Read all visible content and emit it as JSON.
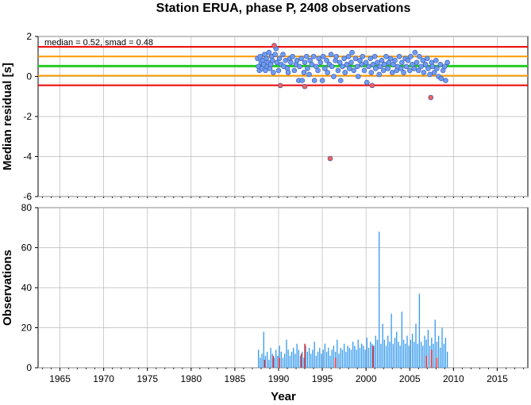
{
  "chart_data": [
    {
      "type": "scatter",
      "title": "Station ERUA, phase P, 2408 observations",
      "annotation": "median = 0.52, smad = 0.48",
      "xlabel": "",
      "ylabel": "Median residual [s]",
      "xlim": [
        1962.5,
        2018.5
      ],
      "ylim": [
        -6,
        2
      ],
      "y_ticks": [
        "2",
        "0",
        "-2",
        "-4",
        "-6"
      ],
      "grid": true,
      "reference_lines": [
        {
          "name": "median",
          "value": 0.52,
          "color": "#22cc22"
        },
        {
          "name": "median + smad",
          "value": 1.0,
          "color": "#ff9900"
        },
        {
          "name": "median - smad",
          "value": 0.04,
          "color": "#ff9900"
        },
        {
          "name": "median + 2 smad",
          "value": 1.48,
          "color": "#ee0000"
        },
        {
          "name": "median - 2 smad",
          "value": -0.44,
          "color": "#ee0000"
        }
      ],
      "series": [
        {
          "color": "#6f9cf2",
          "points": [
            [
              1987.6,
              0.9
            ],
            [
              1987.7,
              0.5
            ],
            [
              1987.8,
              0.3
            ],
            [
              1987.9,
              1.0
            ],
            [
              1988.0,
              0.7
            ],
            [
              1988.1,
              0.4
            ],
            [
              1988.2,
              0.8
            ],
            [
              1988.3,
              0.6
            ],
            [
              1988.4,
              1.1
            ],
            [
              1988.5,
              0.3
            ],
            [
              1988.6,
              0.9
            ],
            [
              1988.7,
              0.5
            ],
            [
              1988.8,
              0.7
            ],
            [
              1988.9,
              1.2
            ],
            [
              1989.0,
              0.4
            ],
            [
              1989.1,
              0.6
            ],
            [
              1989.2,
              1.0
            ],
            [
              1989.3,
              0.8
            ],
            [
              1989.4,
              0.2
            ],
            [
              1989.6,
              1.1
            ],
            [
              1989.7,
              1.4
            ],
            [
              1989.8,
              0.7
            ],
            [
              1990.0,
              0.3
            ],
            [
              1990.1,
              0.9
            ],
            [
              1990.3,
              0.6
            ],
            [
              1990.5,
              1.1
            ],
            [
              1990.6,
              0.5
            ],
            [
              1990.8,
              0.8
            ],
            [
              1991.0,
              0.4
            ],
            [
              1991.1,
              0.2
            ],
            [
              1991.3,
              0.9
            ],
            [
              1991.4,
              0.7
            ],
            [
              1991.6,
              1.0
            ],
            [
              1991.8,
              0.3
            ],
            [
              1992.0,
              0.6
            ],
            [
              1992.1,
              0.8
            ],
            [
              1992.3,
              -0.2
            ],
            [
              1992.4,
              0.5
            ],
            [
              1992.6,
              0.9
            ],
            [
              1992.7,
              -0.2
            ],
            [
              1992.9,
              0.2
            ],
            [
              1993.0,
              0.7
            ],
            [
              1993.2,
              1.0
            ],
            [
              1993.3,
              0.4
            ],
            [
              1993.5,
              0.1
            ],
            [
              1993.6,
              0.8
            ],
            [
              1993.8,
              0.6
            ],
            [
              1994.0,
              1.0
            ],
            [
              1994.1,
              -0.2
            ],
            [
              1994.3,
              0.5
            ],
            [
              1994.5,
              0.3
            ],
            [
              1994.6,
              0.9
            ],
            [
              1994.8,
              0.7
            ],
            [
              1995.0,
              -0.2
            ],
            [
              1995.1,
              1.0
            ],
            [
              1995.3,
              0.4
            ],
            [
              1995.5,
              0.8
            ],
            [
              1995.6,
              0.2
            ],
            [
              1995.8,
              0.6
            ],
            [
              1996.0,
              1.1
            ],
            [
              1996.1,
              0.5
            ],
            [
              1996.3,
              0.0
            ],
            [
              1996.5,
              0.8
            ],
            [
              1996.6,
              1.0
            ],
            [
              1996.8,
              0.3
            ],
            [
              1997.0,
              0.7
            ],
            [
              1997.1,
              -0.2
            ],
            [
              1997.3,
              0.5
            ],
            [
              1997.5,
              0.9
            ],
            [
              1997.6,
              0.2
            ],
            [
              1997.8,
              0.6
            ],
            [
              1998.0,
              1.0
            ],
            [
              1998.1,
              0.4
            ],
            [
              1998.3,
              0.7
            ],
            [
              1998.4,
              1.2
            ],
            [
              1998.6,
              0.3
            ],
            [
              1998.8,
              0.9
            ],
            [
              1999.0,
              0.5
            ],
            [
              1999.1,
              0.0
            ],
            [
              1999.3,
              0.8
            ],
            [
              1999.5,
              0.6
            ],
            [
              1999.6,
              1.0
            ],
            [
              1999.8,
              0.3
            ],
            [
              2000.0,
              0.7
            ],
            [
              2000.1,
              -0.3
            ],
            [
              2000.3,
              0.5
            ],
            [
              2000.5,
              0.9
            ],
            [
              2000.6,
              0.2
            ],
            [
              2000.8,
              0.6
            ],
            [
              2001.0,
              1.0
            ],
            [
              2001.1,
              0.4
            ],
            [
              2001.3,
              0.7
            ],
            [
              2001.5,
              0.1
            ],
            [
              2001.6,
              0.5
            ],
            [
              2001.8,
              0.8
            ],
            [
              2002.0,
              0.3
            ],
            [
              2002.1,
              0.6
            ],
            [
              2002.3,
              1.0
            ],
            [
              2002.5,
              0.4
            ],
            [
              2002.6,
              0.7
            ],
            [
              2002.8,
              0.9
            ],
            [
              2003.0,
              0.2
            ],
            [
              2003.1,
              0.6
            ],
            [
              2003.3,
              0.8
            ],
            [
              2003.5,
              0.3
            ],
            [
              2003.6,
              0.5
            ],
            [
              2003.8,
              1.0
            ],
            [
              2004.0,
              0.4
            ],
            [
              2004.1,
              0.7
            ],
            [
              2004.3,
              0.2
            ],
            [
              2004.5,
              0.9
            ],
            [
              2004.6,
              0.5
            ],
            [
              2004.8,
              0.8
            ],
            [
              2005.0,
              0.3
            ],
            [
              2005.1,
              1.0
            ],
            [
              2005.3,
              0.6
            ],
            [
              2005.5,
              0.4
            ],
            [
              2005.6,
              1.2
            ],
            [
              2005.8,
              0.7
            ],
            [
              2006.0,
              0.3
            ],
            [
              2006.1,
              1.0
            ],
            [
              2006.3,
              0.5
            ],
            [
              2006.5,
              0.8
            ],
            [
              2006.6,
              0.2
            ],
            [
              2006.8,
              0.6
            ],
            [
              2007.0,
              0.9
            ],
            [
              2007.1,
              0.4
            ],
            [
              2007.3,
              0.1
            ],
            [
              2007.5,
              0.7
            ],
            [
              2007.6,
              0.5
            ],
            [
              2007.8,
              0.2
            ],
            [
              2008.0,
              0.8
            ],
            [
              2008.1,
              0.4
            ],
            [
              2008.3,
              0.0
            ],
            [
              2008.5,
              0.6
            ],
            [
              2008.6,
              -0.1
            ],
            [
              2008.8,
              0.3
            ],
            [
              2009.0,
              0.5
            ],
            [
              2009.1,
              -0.2
            ],
            [
              2009.3,
              0.7
            ]
          ]
        },
        {
          "color": "#f06060",
          "points": [
            [
              1989.5,
              1.55
            ],
            [
              1990.2,
              -0.45
            ],
            [
              1993.0,
              -0.5
            ],
            [
              1995.9,
              -4.1
            ],
            [
              2000.7,
              -0.45
            ],
            [
              2007.4,
              -1.05
            ]
          ]
        }
      ]
    },
    {
      "type": "bar",
      "title": "",
      "xlabel": "Year",
      "ylabel": "Observations",
      "xlim": [
        1962.5,
        2018.5
      ],
      "ylim": [
        0,
        80
      ],
      "y_ticks": [
        "80",
        "60",
        "40",
        "20",
        "0"
      ],
      "x_ticks": [
        "1965",
        "1970",
        "1975",
        "1980",
        "1985",
        "1990",
        "1995",
        "2000",
        "2005",
        "2010",
        "2015"
      ],
      "grid": true,
      "series": [
        {
          "color": "#3399ee",
          "x": [
            1987.7,
            1987.9,
            1988.1,
            1988.3,
            1988.5,
            1988.7,
            1988.9,
            1989.1,
            1989.3,
            1989.5,
            1989.7,
            1989.9,
            1990.1,
            1990.3,
            1990.5,
            1990.7,
            1990.9,
            1991.1,
            1991.3,
            1991.5,
            1991.7,
            1991.9,
            1992.1,
            1992.3,
            1992.5,
            1992.7,
            1992.9,
            1993.1,
            1993.3,
            1993.5,
            1993.7,
            1993.9,
            1994.1,
            1994.3,
            1994.5,
            1994.7,
            1994.9,
            1995.1,
            1995.3,
            1995.5,
            1995.7,
            1995.9,
            1996.1,
            1996.3,
            1996.5,
            1996.7,
            1996.9,
            1997.1,
            1997.3,
            1997.5,
            1997.7,
            1997.9,
            1998.1,
            1998.3,
            1998.5,
            1998.7,
            1998.9,
            1999.1,
            1999.3,
            1999.5,
            1999.7,
            1999.9,
            2000.1,
            2000.3,
            2000.5,
            2000.7,
            2000.9,
            2001.1,
            2001.3,
            2001.5,
            2001.7,
            2001.9,
            2002.1,
            2002.3,
            2002.5,
            2002.7,
            2002.9,
            2003.1,
            2003.3,
            2003.5,
            2003.7,
            2003.9,
            2004.1,
            2004.3,
            2004.5,
            2004.7,
            2004.9,
            2005.1,
            2005.3,
            2005.5,
            2005.7,
            2005.9,
            2006.1,
            2006.3,
            2006.5,
            2006.7,
            2006.9,
            2007.1,
            2007.3,
            2007.5,
            2007.7,
            2007.9,
            2008.1,
            2008.3,
            2008.5,
            2008.7,
            2008.9,
            2009.1,
            2009.3
          ],
          "values": [
            9,
            5,
            7,
            18,
            6,
            8,
            4,
            10,
            7,
            5,
            9,
            6,
            11,
            8,
            5,
            7,
            14,
            9,
            6,
            8,
            10,
            7,
            12,
            9,
            6,
            8,
            5,
            11,
            8,
            10,
            7,
            9,
            13,
            6,
            8,
            10,
            7,
            9,
            12,
            8,
            10,
            6,
            9,
            11,
            8,
            14,
            7,
            10,
            9,
            12,
            8,
            11,
            10,
            9,
            13,
            11,
            9,
            14,
            10,
            12,
            11,
            9,
            15,
            10,
            13,
            12,
            11,
            16,
            14,
            68,
            12,
            22,
            14,
            11,
            16,
            13,
            27,
            12,
            15,
            18,
            13,
            11,
            28,
            14,
            12,
            16,
            11,
            14,
            17,
            13,
            22,
            12,
            37,
            13,
            11,
            16,
            14,
            19,
            11,
            15,
            12,
            24,
            13,
            16,
            10,
            20,
            12,
            15,
            8
          ]
        },
        {
          "color": "#ee3333",
          "x": [
            1988.4,
            1989.4,
            1990.1,
            1992.6,
            1993.0,
            1996.5,
            2000.8,
            2006.9,
            2007.5,
            2008.1
          ],
          "values": [
            4,
            6,
            5,
            7,
            12,
            5,
            11,
            6,
            9,
            5
          ]
        }
      ]
    }
  ]
}
